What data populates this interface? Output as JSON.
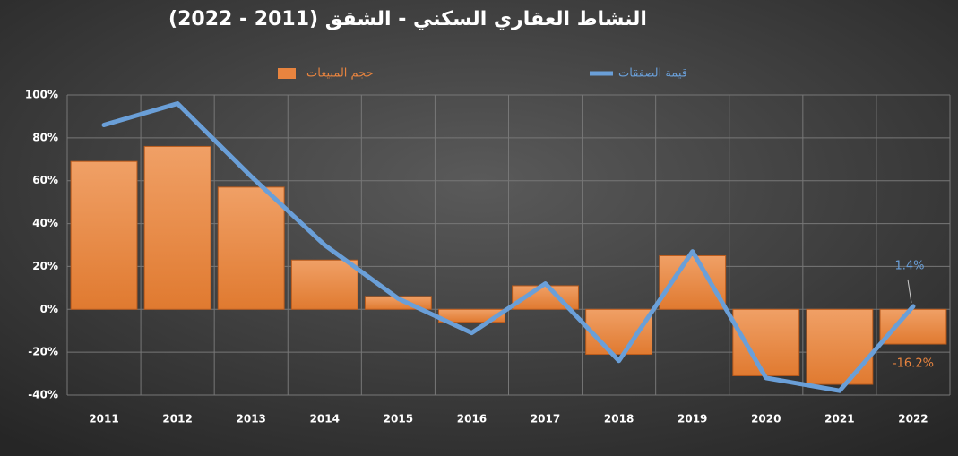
{
  "chart_data": {
    "type": "combo",
    "title": "النشاط العقاري السكني - الشقق (2011 - 2022)",
    "categories": [
      "2011",
      "2012",
      "2013",
      "2014",
      "2015",
      "2016",
      "2017",
      "2018",
      "2019",
      "2020",
      "2021",
      "2022"
    ],
    "series": [
      {
        "name": "حجم المبيعات",
        "type": "bar",
        "color": "#e8843f",
        "values": [
          69,
          76,
          57,
          23,
          6,
          -6,
          11,
          -21,
          25,
          -31,
          -35,
          -16.2
        ],
        "value_labels": [
          null,
          null,
          null,
          null,
          null,
          null,
          null,
          null,
          null,
          null,
          null,
          "-16.2%"
        ]
      },
      {
        "name": "قيمة الصفقات",
        "type": "line",
        "color": "#6a9fd8",
        "values": [
          86,
          96,
          62,
          30,
          5,
          -11,
          12,
          -24,
          27,
          -32,
          -38,
          1.4
        ],
        "value_labels": [
          null,
          null,
          null,
          null,
          null,
          null,
          null,
          null,
          null,
          null,
          null,
          "1.4%"
        ]
      }
    ],
    "ylim": [
      -40,
      100
    ],
    "yticks": [
      {
        "value": -40,
        "label": "-40%"
      },
      {
        "value": -20,
        "label": "-20%"
      },
      {
        "value": 0,
        "label": "0%"
      },
      {
        "value": 20,
        "label": "20%"
      },
      {
        "value": 40,
        "label": "40%"
      },
      {
        "value": 60,
        "label": "60%"
      },
      {
        "value": 80,
        "label": "80%"
      },
      {
        "value": 100,
        "label": "100%"
      }
    ],
    "grid": true
  }
}
